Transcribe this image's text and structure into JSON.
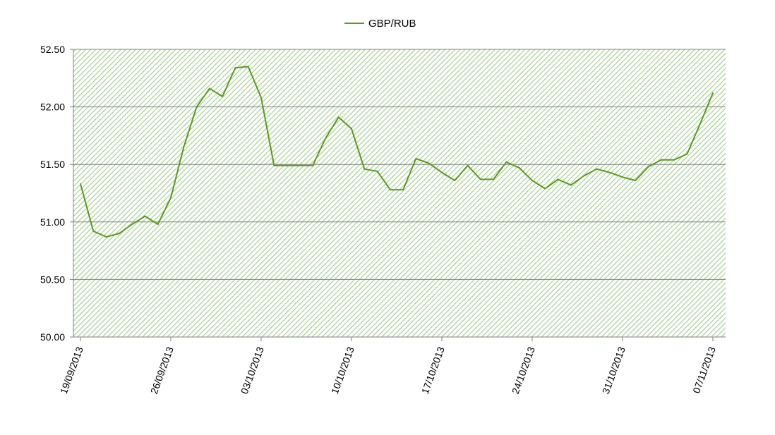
{
  "chart_data": {
    "type": "line",
    "title": "",
    "xlabel": "",
    "ylabel": "",
    "ylim": [
      50.0,
      52.5
    ],
    "yticks": [
      "50.00",
      "50.50",
      "51.00",
      "51.50",
      "52.00",
      "52.50"
    ],
    "xticks": [
      "19/09/2013",
      "26/09/2013",
      "03/10/2013",
      "10/10/2013",
      "17/10/2013",
      "24/10/2013",
      "31/10/2013",
      "07/11/2013"
    ],
    "xlim": [
      "2013-09-19",
      "2013-11-07"
    ],
    "grid": true,
    "legend": "top",
    "colors": {
      "line": "#5b9a1c",
      "hatch": "#9fcc8a",
      "grid": "#808080"
    },
    "series": [
      {
        "name": "GBP/RUB",
        "x": [
          "2013-09-19",
          "2013-09-20",
          "2013-09-21",
          "2013-09-22",
          "2013-09-23",
          "2013-09-24",
          "2013-09-25",
          "2013-09-26",
          "2013-09-27",
          "2013-09-28",
          "2013-09-29",
          "2013-09-30",
          "2013-10-01",
          "2013-10-02",
          "2013-10-03",
          "2013-10-04",
          "2013-10-07",
          "2013-10-08",
          "2013-10-09",
          "2013-10-10",
          "2013-10-11",
          "2013-10-12",
          "2013-10-13",
          "2013-10-14",
          "2013-10-15",
          "2013-10-16",
          "2013-10-17",
          "2013-10-18",
          "2013-10-19",
          "2013-10-20",
          "2013-10-21",
          "2013-10-22",
          "2013-10-23",
          "2013-10-24",
          "2013-10-25",
          "2013-10-26",
          "2013-10-27",
          "2013-10-28",
          "2013-10-29",
          "2013-10-30",
          "2013-10-31",
          "2013-11-01",
          "2013-11-02",
          "2013-11-03",
          "2013-11-04",
          "2013-11-05",
          "2013-11-06",
          "2013-11-07"
        ],
        "values": [
          51.33,
          50.92,
          50.87,
          50.9,
          50.98,
          51.05,
          50.98,
          51.21,
          51.65,
          52.0,
          52.16,
          52.09,
          52.34,
          52.35,
          52.08,
          51.49,
          51.49,
          51.73,
          51.91,
          51.81,
          51.46,
          51.44,
          51.28,
          51.28,
          51.55,
          51.51,
          51.43,
          51.36,
          51.49,
          51.37,
          51.37,
          51.52,
          51.47,
          51.36,
          51.29,
          51.37,
          51.32,
          51.4,
          51.46,
          51.43,
          51.39,
          51.36,
          51.48,
          51.54,
          51.54,
          51.59,
          51.85,
          52.12
        ]
      }
    ]
  }
}
